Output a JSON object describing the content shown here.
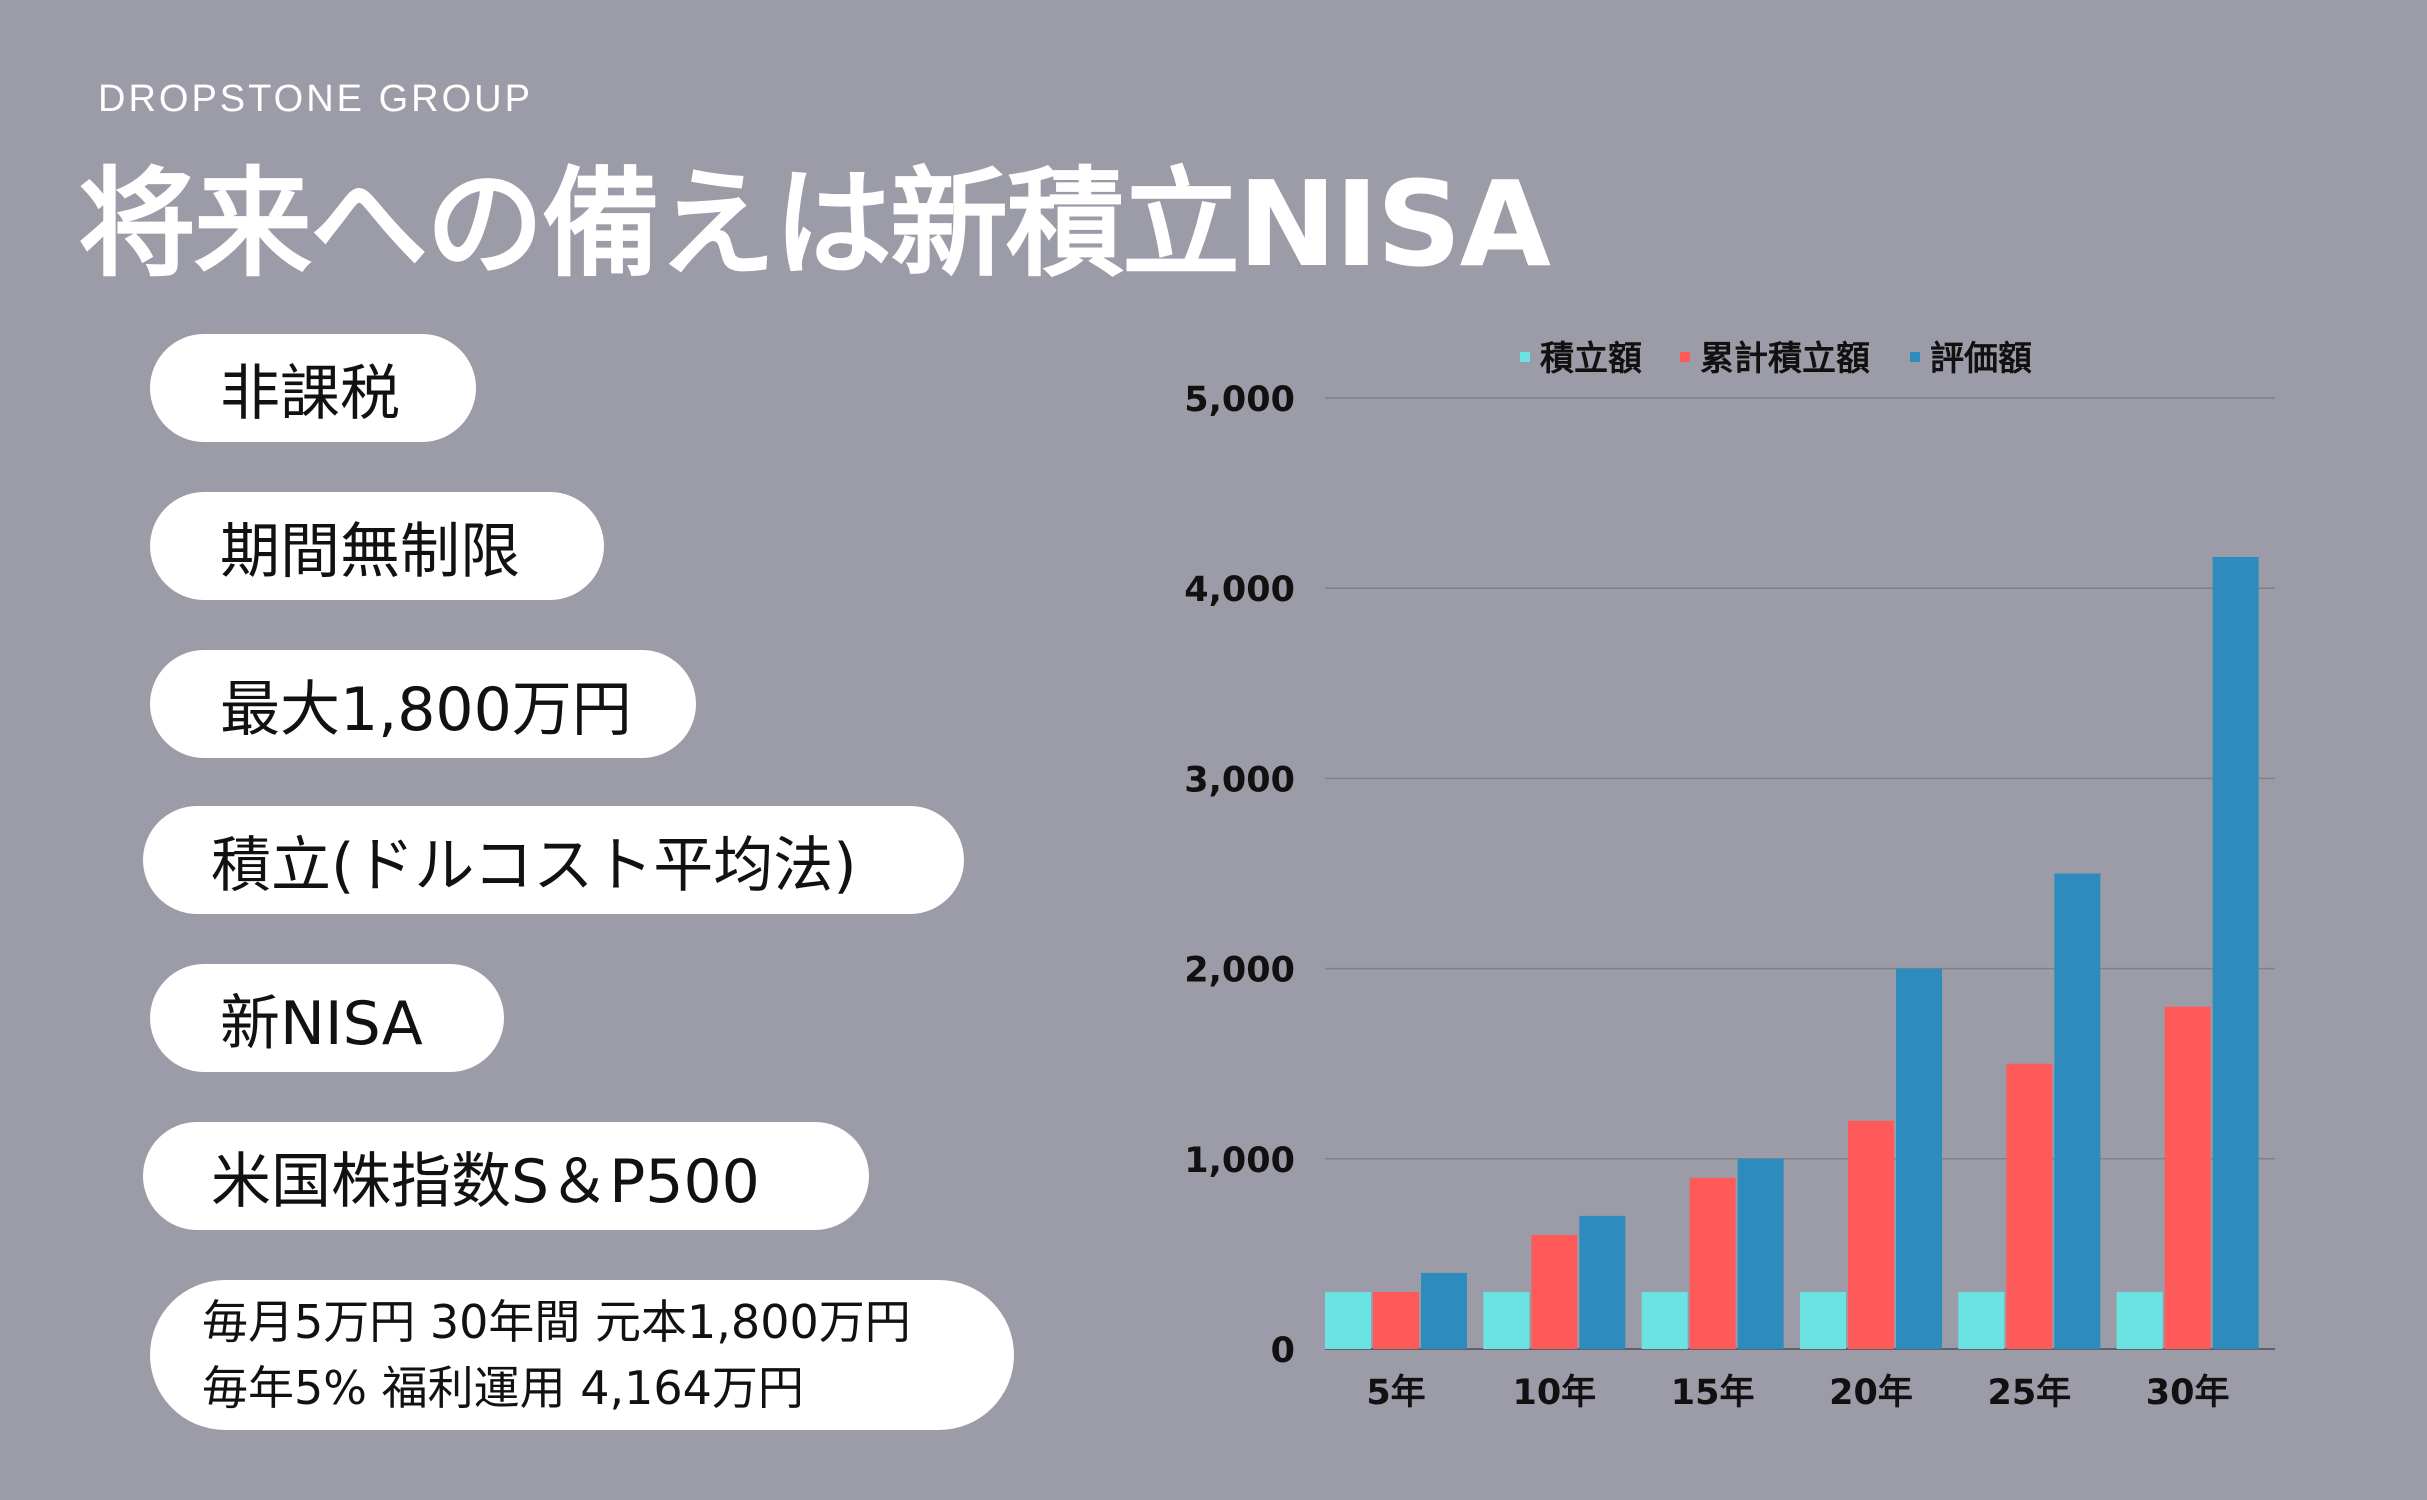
{
  "brand": "DROPSTONE  GROUP",
  "headline": "将来への備えは新積立NISA",
  "features": [
    "非課税",
    "期間無制限",
    "最大1,800万円",
    "積立(ドルコスト平均法)",
    "新NISA",
    "米国株指数S＆P500"
  ],
  "summary": {
    "line1": "毎月5万円 30年間 元本1,800万円",
    "line2": "毎年5% 福利運用 4,164万円"
  },
  "colors": {
    "background": "#9b9ca7",
    "series_1": "#6be3e3",
    "series_2": "#ff5a5a",
    "series_3": "#2e8bbd"
  },
  "chart_data": {
    "type": "bar",
    "title": "",
    "xlabel": "",
    "ylabel": "",
    "categories": [
      "5年",
      "10年",
      "15年",
      "20年",
      "25年",
      "30年"
    ],
    "series": [
      {
        "name": "積立額",
        "values": [
          300,
          300,
          300,
          300,
          300,
          300
        ]
      },
      {
        "name": "累計積立額",
        "values": [
          300,
          600,
          900,
          1200,
          1500,
          1800
        ]
      },
      {
        "name": "評価額",
        "values": [
          400,
          700,
          1000,
          2000,
          2500,
          4164
        ]
      }
    ],
    "ylim": [
      0,
      5000
    ],
    "yticks": [
      "0",
      "1,000",
      "2,000",
      "3,000",
      "4,000",
      "5,000"
    ],
    "grid": true,
    "legend": "top"
  }
}
